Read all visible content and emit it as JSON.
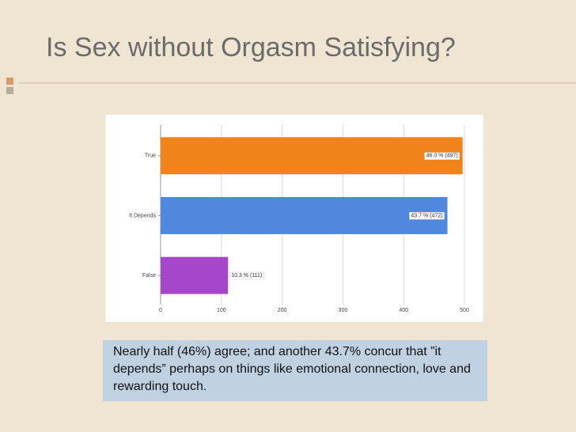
{
  "chart_data": {
    "type": "hbar",
    "title": "Is Sex without Orgasm Satisfying?",
    "categories": [
      "True",
      "It Depends",
      "False"
    ],
    "values": [
      497,
      472,
      111
    ],
    "value_labels": [
      "46.0 % (497)",
      "43.7 % (472)",
      "10.3 % (111)"
    ],
    "colors": [
      "#f0841a",
      "#4f88dc",
      "#a646c8"
    ],
    "xlim": [
      0,
      500
    ],
    "xticks": [
      0,
      100,
      200,
      300,
      400,
      500
    ],
    "grid": true,
    "annotation": "Nearly half (46%) agree; and another 43.7% concur that ”it depends” perhaps on things like emotional connection, love and rewarding touch."
  }
}
